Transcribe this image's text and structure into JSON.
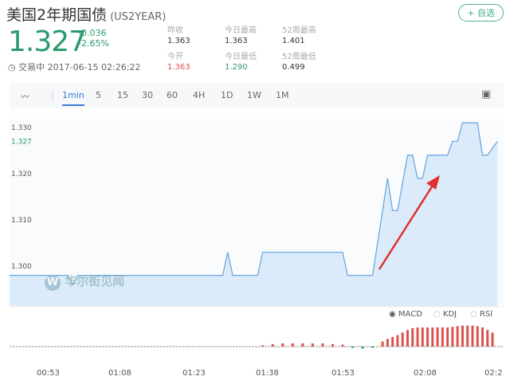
{
  "header": {
    "title": "美国2年期国债",
    "code": "(US2YEAR)",
    "fav_button": "+ 自选"
  },
  "quote": {
    "price": "1.327",
    "change": "-0.036",
    "change_pct": "-2.65%",
    "status": "交易中 2017-06-15 02:26:22"
  },
  "stats": [
    {
      "label": "昨收",
      "value": "1.363",
      "color": "#333333"
    },
    {
      "label": "今日最高",
      "value": "1.363",
      "color": "#333333"
    },
    {
      "label": "52周最高",
      "value": "1.401",
      "color": "#333333"
    },
    {
      "label": "今开",
      "value": "1.363",
      "color": "#d9534f"
    },
    {
      "label": "今日最低",
      "value": "1.290",
      "color": "#2a9a6a"
    },
    {
      "label": "52周最低",
      "value": "0.499",
      "color": "#333333"
    }
  ],
  "toolbar": {
    "tabs": [
      "1min",
      "5",
      "15",
      "30",
      "60",
      "4H",
      "1D",
      "1W",
      "1M"
    ],
    "active": "1min"
  },
  "watermark": "华尔街见闻",
  "indicators": [
    "MACD",
    "KDJ",
    "RSI"
  ],
  "indicator_selected": "MACD",
  "colors": {
    "up": "#d9534f",
    "down": "#2a9a6a",
    "line": "#6aa8e0",
    "fill": "#dcebfa"
  },
  "chart_data": {
    "type": "area",
    "y_ticks": [
      "1.330",
      "1.320",
      "1.310",
      "1.300"
    ],
    "current_label": "1.327",
    "ylim": [
      1.295,
      1.333
    ],
    "x_ticks": [
      "00:53",
      "01:08",
      "01:23",
      "01:38",
      "01:53",
      "02:08",
      "02:2"
    ],
    "points": [
      [
        "00:45",
        1.298
      ],
      [
        "00:57",
        1.298
      ],
      [
        "00:58",
        1.296
      ],
      [
        "00:59",
        1.298
      ],
      [
        "01:28",
        1.298
      ],
      [
        "01:29",
        1.303
      ],
      [
        "01:30",
        1.298
      ],
      [
        "01:35",
        1.298
      ],
      [
        "01:36",
        1.303
      ],
      [
        "01:52",
        1.303
      ],
      [
        "01:53",
        1.298
      ],
      [
        "01:58",
        1.298
      ],
      [
        "02:01",
        1.319
      ],
      [
        "02:02",
        1.312
      ],
      [
        "02:03",
        1.312
      ],
      [
        "02:05",
        1.324
      ],
      [
        "02:06",
        1.324
      ],
      [
        "02:07",
        1.319
      ],
      [
        "02:08",
        1.319
      ],
      [
        "02:09",
        1.324
      ],
      [
        "02:13",
        1.324
      ],
      [
        "02:14",
        1.327
      ],
      [
        "02:15",
        1.327
      ],
      [
        "02:16",
        1.331
      ],
      [
        "02:19",
        1.331
      ],
      [
        "02:20",
        1.324
      ],
      [
        "02:21",
        1.324
      ],
      [
        "02:23",
        1.327
      ]
    ],
    "macd_hist": [
      [
        "01:36",
        0.2
      ],
      [
        "01:38",
        0.4
      ],
      [
        "01:40",
        0.5
      ],
      [
        "01:42",
        0.5
      ],
      [
        "01:44",
        0.5
      ],
      [
        "01:46",
        0.5
      ],
      [
        "01:48",
        0.5
      ],
      [
        "01:50",
        0.4
      ],
      [
        "01:52",
        0.3
      ],
      [
        "01:54",
        -0.2
      ],
      [
        "01:56",
        -0.3
      ],
      [
        "01:58",
        -0.2
      ],
      [
        "02:00",
        0.8
      ],
      [
        "02:01",
        1.2
      ],
      [
        "02:02",
        1.5
      ],
      [
        "02:03",
        1.8
      ],
      [
        "02:04",
        2.2
      ],
      [
        "02:05",
        2.6
      ],
      [
        "02:06",
        2.9
      ],
      [
        "02:07",
        3.0
      ],
      [
        "02:08",
        3.0
      ],
      [
        "02:09",
        3.0
      ],
      [
        "02:10",
        3.0
      ],
      [
        "02:11",
        3.0
      ],
      [
        "02:12",
        3.0
      ],
      [
        "02:13",
        3.0
      ],
      [
        "02:14",
        3.1
      ],
      [
        "02:15",
        3.2
      ],
      [
        "02:16",
        3.3
      ],
      [
        "02:17",
        3.3
      ],
      [
        "02:18",
        3.3
      ],
      [
        "02:19",
        3.2
      ],
      [
        "02:20",
        3.0
      ],
      [
        "02:21",
        2.6
      ],
      [
        "02:22",
        2.2
      ]
    ]
  }
}
